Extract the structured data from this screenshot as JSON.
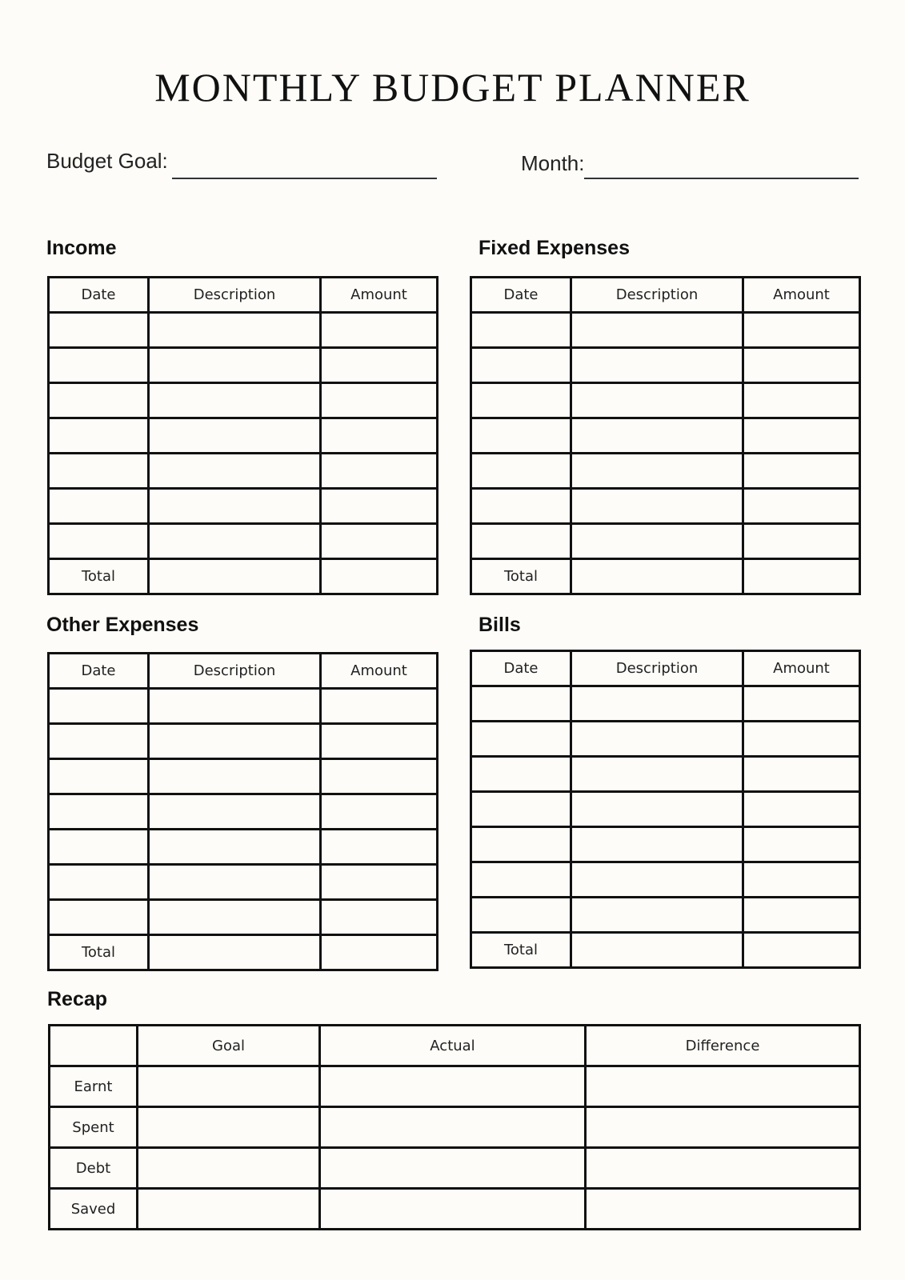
{
  "title": "MONTHLY BUDGET PLANNER",
  "fields": {
    "budget_goal_label": "Budget Goal:",
    "budget_goal_value": "",
    "month_label": "Month:",
    "month_value": ""
  },
  "sections": [
    {
      "id": "income",
      "heading": "Income",
      "columns": [
        "Date",
        "Description",
        "Amount"
      ],
      "blank_rows": 7,
      "total_label": "Total"
    },
    {
      "id": "fixed-expenses",
      "heading": "Fixed Expenses",
      "columns": [
        "Date",
        "Description",
        "Amount"
      ],
      "blank_rows": 7,
      "total_label": "Total"
    },
    {
      "id": "other-expenses",
      "heading": "Other Expenses",
      "columns": [
        "Date",
        "Description",
        "Amount"
      ],
      "blank_rows": 7,
      "total_label": "Total"
    },
    {
      "id": "bills",
      "heading": "Bills",
      "columns": [
        "Date",
        "Description",
        "Amount"
      ],
      "blank_rows": 7,
      "total_label": "Total"
    }
  ],
  "recap": {
    "heading": "Recap",
    "columns": [
      "",
      "Goal",
      "Actual",
      "Difference"
    ],
    "rows": [
      "Earnt",
      "Spent",
      "Debt",
      "Saved"
    ]
  }
}
